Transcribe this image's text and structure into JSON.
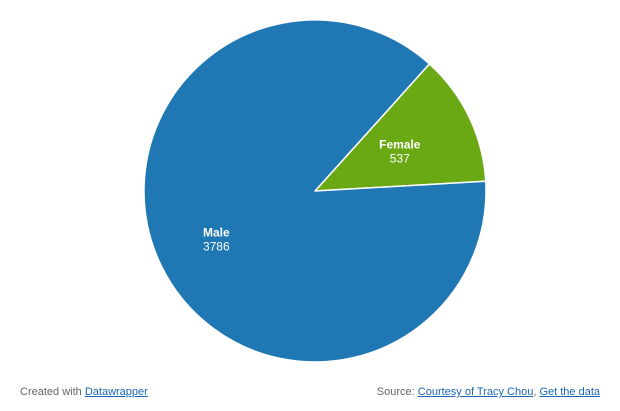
{
  "chart_data": {
    "type": "pie",
    "slices": [
      {
        "label": "Male",
        "value": 3786,
        "color": "#1f77b4"
      },
      {
        "label": "Female",
        "value": 537,
        "color": "#6aa814"
      }
    ]
  },
  "footer": {
    "created_prefix": "Created with",
    "created_link": "Datawrapper",
    "source_prefix": "Source:",
    "source_link": "Courtesy of Tracy Chou",
    "separator": ",",
    "data_link": "Get the data"
  }
}
